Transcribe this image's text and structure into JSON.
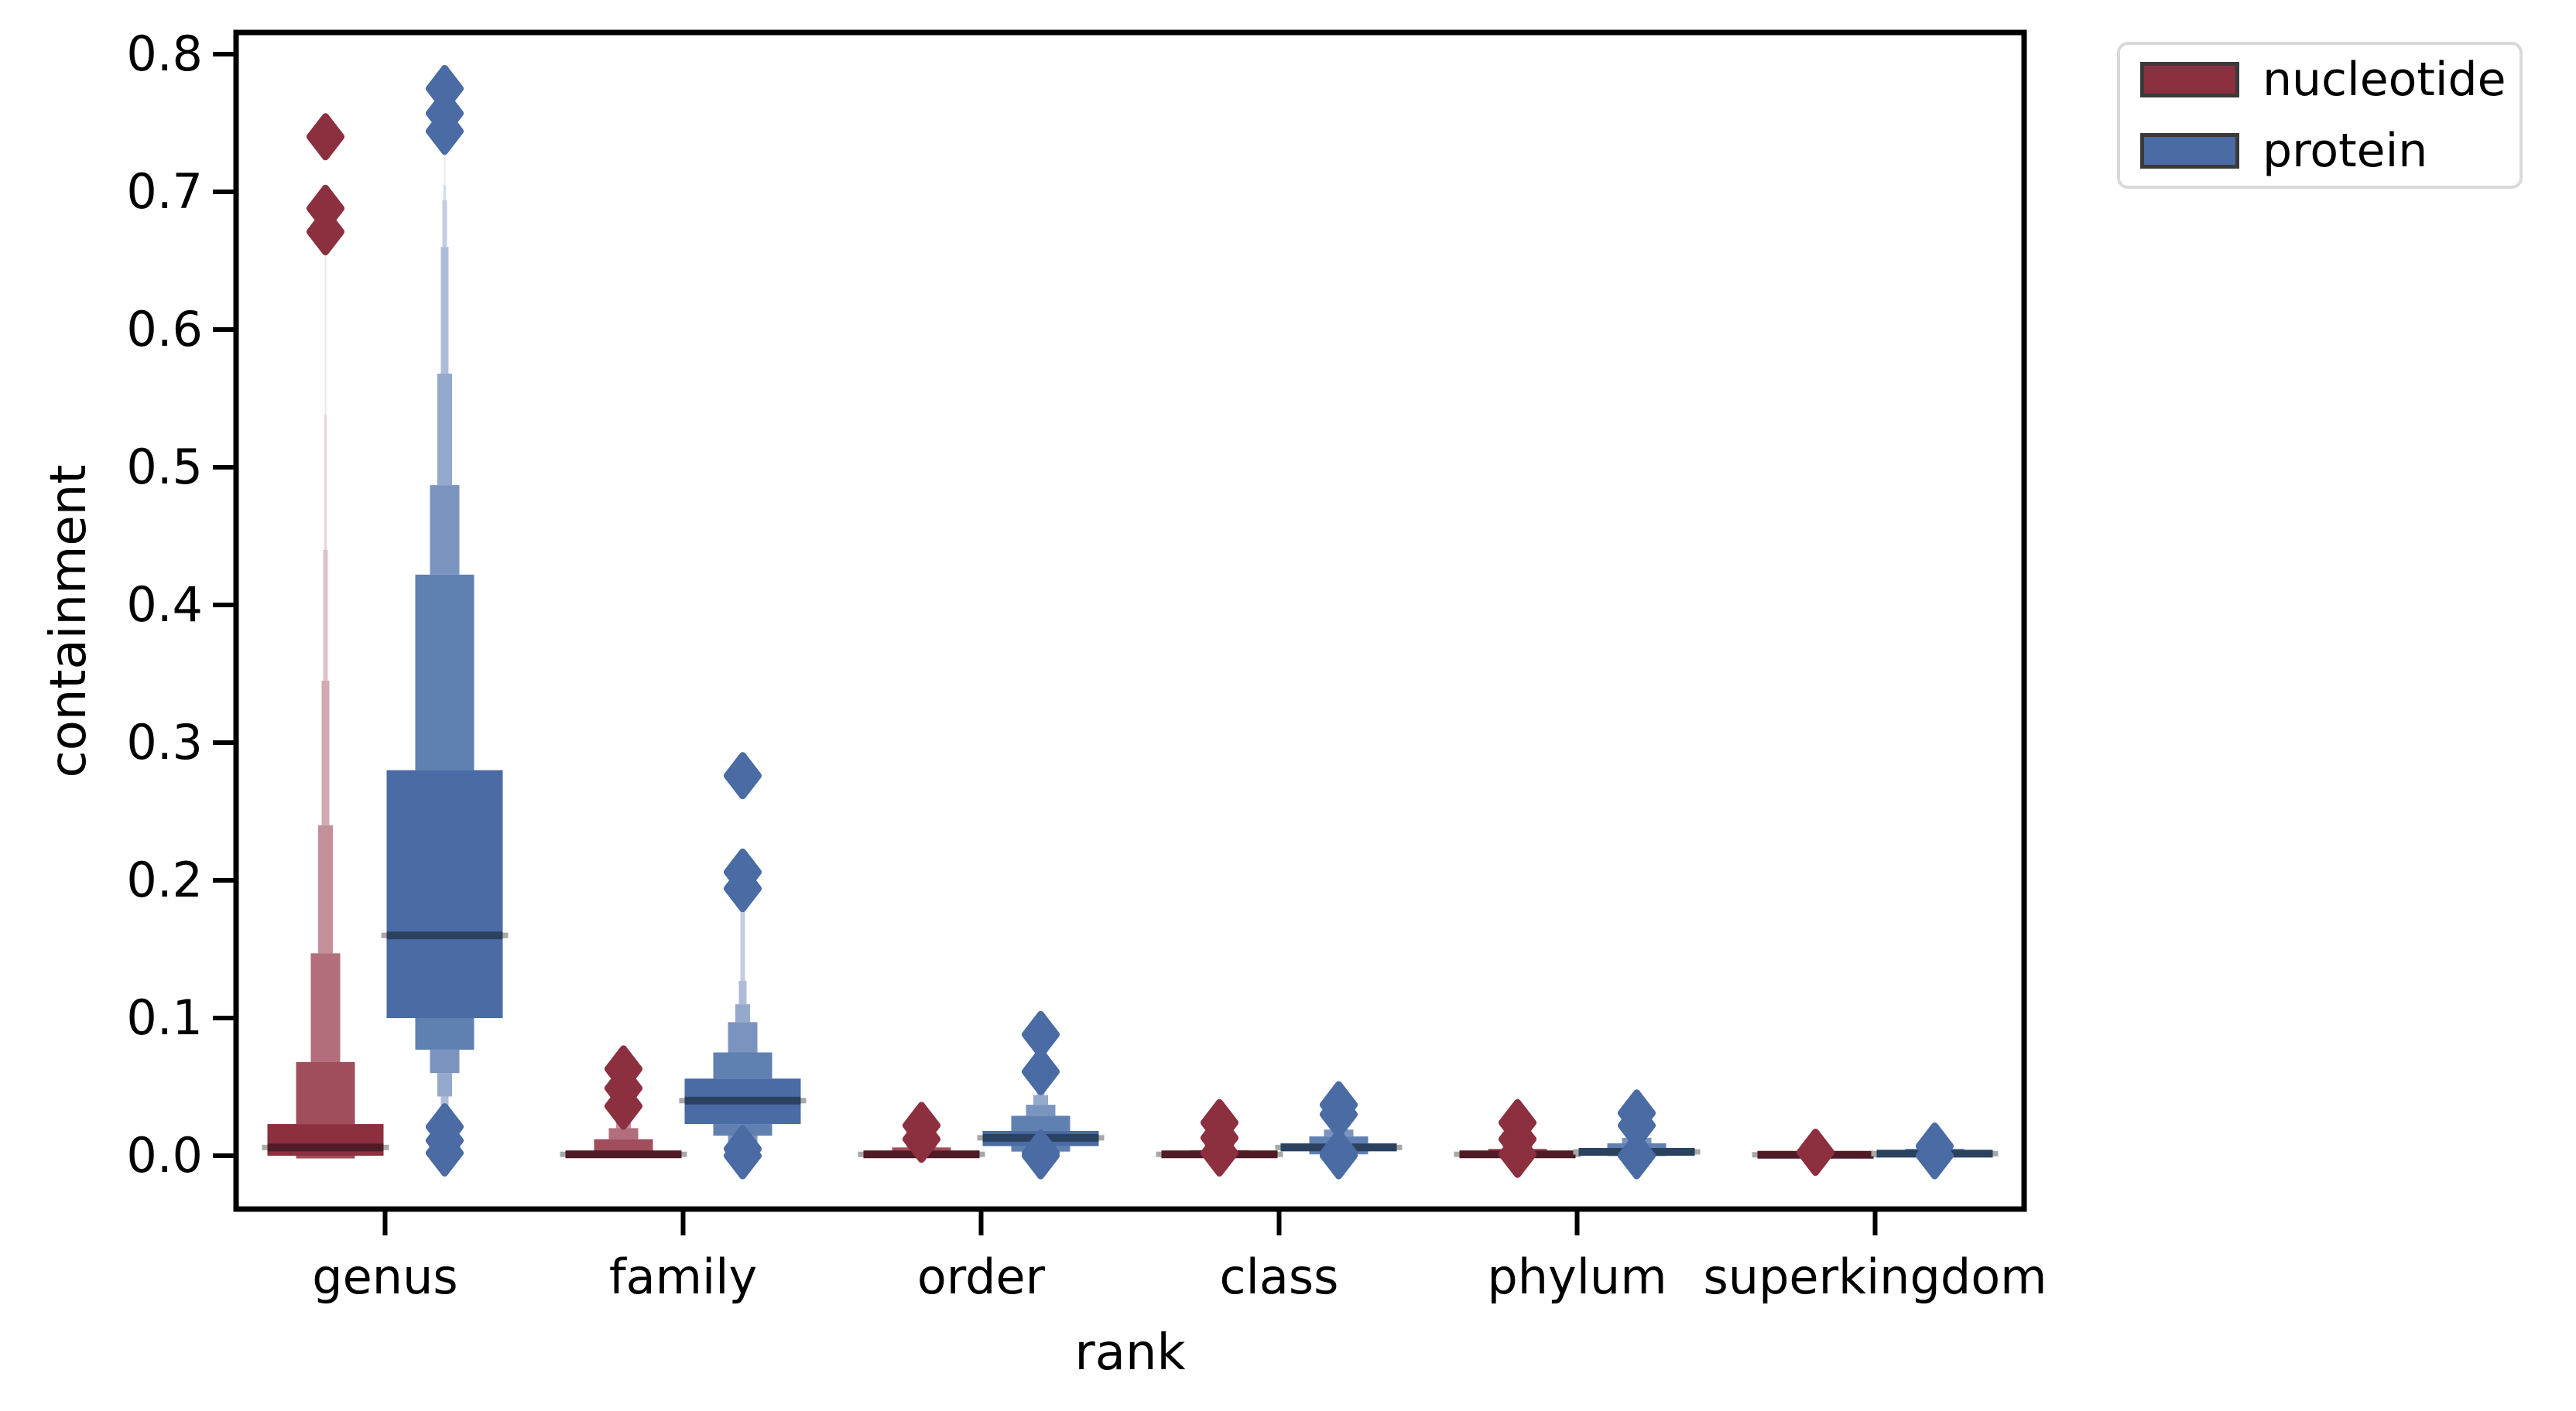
{
  "chart_data": {
    "type": "boxen",
    "title": "",
    "xlabel": "rank",
    "ylabel": "containment",
    "categories": [
      "genus",
      "family",
      "order",
      "class",
      "phylum",
      "superkingdom"
    ],
    "y_ticks": [
      {
        "value": 0.0,
        "label": "0.0"
      },
      {
        "value": 0.1,
        "label": "0.1"
      },
      {
        "value": 0.2,
        "label": "0.2"
      },
      {
        "value": 0.3,
        "label": "0.3"
      },
      {
        "value": 0.4,
        "label": "0.4"
      },
      {
        "value": 0.5,
        "label": "0.5"
      },
      {
        "value": 0.6,
        "label": "0.6"
      },
      {
        "value": 0.7,
        "label": "0.7"
      },
      {
        "value": 0.8,
        "label": "0.8"
      }
    ],
    "ylim": [
      -0.039,
      0.816
    ],
    "grid": false,
    "legend": {
      "position": "outside-upper-right",
      "entries": [
        {
          "label": "nucleotide",
          "color": "#8c2f3f"
        },
        {
          "label": "protein",
          "color": "#4a6ba3"
        }
      ]
    },
    "colors": {
      "spine": "#000000",
      "median_gray": "#a8a8a8",
      "swatch_edge": "#3a3a3a",
      "legend_border": "#d9d9d9"
    },
    "series": [
      {
        "name": "nucleotide",
        "color": "#8c2f3f",
        "median_line_color": "#4f1b26",
        "shades": [
          "#8c2f3f",
          "#a14e5c",
          "#b26e7b",
          "#c38f99",
          "#d2aab3",
          "#ddc2c8",
          "#e8d6da",
          "#f0e4e6"
        ],
        "groups": [
          {
            "category": "genus",
            "median": 0.006,
            "tiers": [
              {
                "lo": 0.0,
                "hi": 0.023,
                "level": 0
              },
              {
                "lo": 0.023,
                "hi": 0.068,
                "level": 1
              },
              {
                "lo": -0.002,
                "hi": 0.0,
                "level": 1
              },
              {
                "lo": 0.068,
                "hi": 0.147,
                "level": 2
              },
              {
                "lo": 0.147,
                "hi": 0.24,
                "level": 3
              },
              {
                "lo": 0.24,
                "hi": 0.345,
                "level": 4
              },
              {
                "lo": 0.345,
                "hi": 0.44,
                "level": 5
              },
              {
                "lo": 0.44,
                "hi": 0.538,
                "level": 6
              },
              {
                "lo": 0.538,
                "hi": 0.655,
                "level": 7
              }
            ],
            "outliers": [
              0.74,
              0.688,
              0.671
            ]
          },
          {
            "category": "family",
            "median": 0.001,
            "tiers": [
              {
                "lo": -0.001,
                "hi": 0.002,
                "level": 0
              },
              {
                "lo": 0.002,
                "hi": 0.012,
                "level": 1
              },
              {
                "lo": 0.012,
                "hi": 0.02,
                "level": 2
              },
              {
                "lo": 0.02,
                "hi": 0.028,
                "level": 3
              },
              {
                "lo": 0.028,
                "hi": 0.037,
                "level": 4
              }
            ],
            "outliers": [
              0.063,
              0.049,
              0.036
            ]
          },
          {
            "category": "order",
            "median": 0.001,
            "tiers": [
              {
                "lo": 0.0,
                "hi": 0.003,
                "level": 0
              },
              {
                "lo": 0.003,
                "hi": 0.006,
                "level": 1
              },
              {
                "lo": 0.006,
                "hi": 0.008,
                "level": 2
              }
            ],
            "outliers": [
              0.022,
              0.012
            ]
          },
          {
            "category": "class",
            "median": 0.001,
            "tiers": [
              {
                "lo": 0.0,
                "hi": 0.002,
                "level": 0
              },
              {
                "lo": 0.002,
                "hi": 0.004,
                "level": 1
              },
              {
                "lo": 0.004,
                "hi": 0.006,
                "level": 2
              }
            ],
            "outliers": [
              0.024,
              0.013,
              0.002
            ]
          },
          {
            "category": "phylum",
            "median": 0.001,
            "tiers": [
              {
                "lo": 0.0,
                "hi": 0.002,
                "level": 0
              },
              {
                "lo": 0.002,
                "hi": 0.005,
                "level": 1
              },
              {
                "lo": 0.005,
                "hi": 0.008,
                "level": 2
              }
            ],
            "outliers": [
              0.024,
              0.012,
              0.001
            ]
          },
          {
            "category": "superkingdom",
            "median": 0.0007,
            "tiers": [
              {
                "lo": 0.0,
                "hi": 0.0015,
                "level": 0
              },
              {
                "lo": 0.0015,
                "hi": 0.003,
                "level": 1
              }
            ],
            "outliers": [
              0.0025
            ]
          }
        ]
      },
      {
        "name": "protein",
        "color": "#4a6ba3",
        "median_line_color": "#2b4160",
        "shades": [
          "#4a6ba3",
          "#6080b1",
          "#7b94bf",
          "#94a9cc",
          "#aebcd8",
          "#c3cde0",
          "#d5dcea",
          "#e6eaf3"
        ],
        "groups": [
          {
            "category": "genus",
            "median": 0.16,
            "tiers": [
              {
                "lo": 0.1,
                "hi": 0.28,
                "level": 0
              },
              {
                "lo": 0.28,
                "hi": 0.422,
                "level": 1
              },
              {
                "lo": 0.077,
                "hi": 0.1,
                "level": 1
              },
              {
                "lo": 0.422,
                "hi": 0.487,
                "level": 2
              },
              {
                "lo": 0.06,
                "hi": 0.077,
                "level": 2
              },
              {
                "lo": 0.487,
                "hi": 0.568,
                "level": 3
              },
              {
                "lo": 0.043,
                "hi": 0.06,
                "level": 3
              },
              {
                "lo": 0.568,
                "hi": 0.66,
                "level": 4
              },
              {
                "lo": 0.033,
                "hi": 0.043,
                "level": 4
              },
              {
                "lo": 0.66,
                "hi": 0.694,
                "level": 5
              },
              {
                "lo": 0.694,
                "hi": 0.705,
                "level": 6
              },
              {
                "lo": 0.705,
                "hi": 0.733,
                "level": 7
              }
            ],
            "outliers": [
              0.775,
              0.757,
              0.744,
              0.021,
              0.011,
              0.002
            ]
          },
          {
            "category": "family",
            "median": 0.04,
            "tiers": [
              {
                "lo": 0.023,
                "hi": 0.056,
                "level": 0
              },
              {
                "lo": 0.056,
                "hi": 0.075,
                "level": 1
              },
              {
                "lo": 0.0146,
                "hi": 0.023,
                "level": 1
              },
              {
                "lo": 0.075,
                "hi": 0.097,
                "level": 2
              },
              {
                "lo": 0.0096,
                "hi": 0.0146,
                "level": 2
              },
              {
                "lo": 0.097,
                "hi": 0.11,
                "level": 3
              },
              {
                "lo": 0.007,
                "hi": 0.0096,
                "level": 3
              },
              {
                "lo": 0.11,
                "hi": 0.127,
                "level": 4
              },
              {
                "lo": 0.127,
                "hi": 0.178,
                "level": 5
              }
            ],
            "outliers": [
              0.276,
              0.206,
              0.194,
              0.005,
              0.0
            ]
          },
          {
            "category": "order",
            "median": 0.013,
            "tiers": [
              {
                "lo": 0.007,
                "hi": 0.018,
                "level": 0
              },
              {
                "lo": 0.018,
                "hi": 0.029,
                "level": 1
              },
              {
                "lo": 0.003,
                "hi": 0.007,
                "level": 1
              },
              {
                "lo": 0.029,
                "hi": 0.037,
                "level": 2
              },
              {
                "lo": 0.0,
                "hi": 0.003,
                "level": 2
              },
              {
                "lo": 0.037,
                "hi": 0.044,
                "level": 3
              },
              {
                "lo": 0.044,
                "hi": 0.049,
                "level": 4
              },
              {
                "lo": 0.049,
                "hi": 0.057,
                "level": 5
              }
            ],
            "outliers": [
              0.088,
              0.061,
              0.002,
              0.0
            ]
          },
          {
            "category": "class",
            "median": 0.006,
            "tiers": [
              {
                "lo": 0.0034,
                "hi": 0.009,
                "level": 0
              },
              {
                "lo": 0.009,
                "hi": 0.014,
                "level": 1
              },
              {
                "lo": 0.001,
                "hi": 0.0034,
                "level": 1
              },
              {
                "lo": 0.014,
                "hi": 0.019,
                "level": 2
              },
              {
                "lo": 0.0,
                "hi": 0.001,
                "level": 2
              },
              {
                "lo": 0.019,
                "hi": 0.027,
                "level": 3
              }
            ],
            "outliers": [
              0.037,
              0.03,
              0.002,
              0.0
            ]
          },
          {
            "category": "phylum",
            "median": 0.0028,
            "tiers": [
              {
                "lo": 0.0006,
                "hi": 0.005,
                "level": 0
              },
              {
                "lo": 0.005,
                "hi": 0.009,
                "level": 1
              },
              {
                "lo": 0.0,
                "hi": 0.0006,
                "level": 1
              },
              {
                "lo": 0.009,
                "hi": 0.013,
                "level": 2
              },
              {
                "lo": 0.013,
                "hi": 0.02,
                "level": 3
              }
            ],
            "outliers": [
              0.031,
              0.022,
              0.0
            ]
          },
          {
            "category": "superkingdom",
            "median": 0.0015,
            "tiers": [
              {
                "lo": 0.0,
                "hi": 0.003,
                "level": 0
              },
              {
                "lo": 0.003,
                "hi": 0.005,
                "level": 1
              }
            ],
            "outliers": [
              0.007,
              0.0
            ]
          }
        ]
      }
    ]
  }
}
